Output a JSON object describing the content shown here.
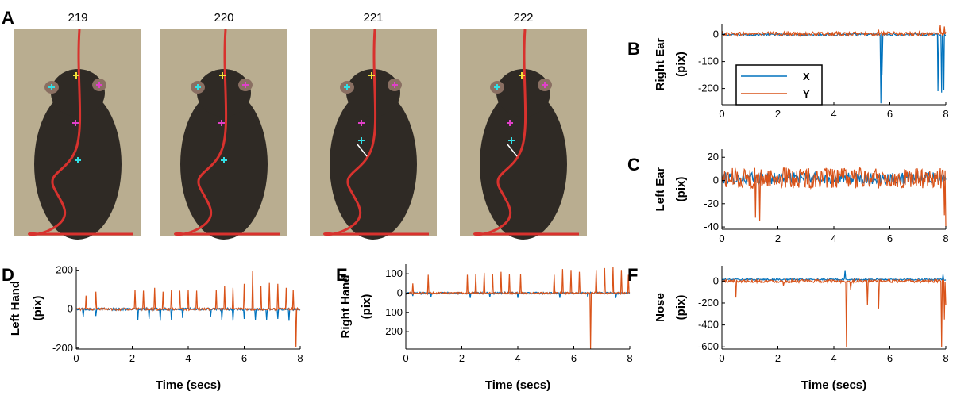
{
  "panel_a": {
    "letter": "A",
    "frames": [
      "219",
      "220",
      "221",
      "222"
    ]
  },
  "colors": {
    "x_series": "#0072BD",
    "y_series": "#D95319",
    "photo_bg": "#b9ad90",
    "mouse_body": "#2f2a25",
    "tail": "#d8322e",
    "marker_cyan": "#33e0e6",
    "marker_magenta": "#e040c8",
    "marker_yellow": "#f2e23a"
  },
  "legend": {
    "entries": [
      "X",
      "Y"
    ]
  },
  "chart_data": [
    {
      "id": "B",
      "type": "line",
      "letter": "B",
      "ylabel_lines": [
        "Right Ear",
        "(pix)"
      ],
      "xlabel": "",
      "xlim": [
        0,
        8
      ],
      "ylim": [
        -260,
        40
      ],
      "xticks": [
        0,
        2,
        4,
        6,
        8
      ],
      "yticks": [
        0,
        -100,
        -200
      ],
      "legend": "top-left inside",
      "series": [
        {
          "name": "X",
          "spikes": [
            [
              5.68,
              -255
            ],
            [
              5.72,
              -150
            ],
            [
              7.72,
              -210
            ],
            [
              7.85,
              -215
            ],
            [
              7.93,
              -205
            ]
          ],
          "base": 0,
          "noise": 4
        },
        {
          "name": "Y",
          "spikes": [
            [
              5.6,
              18
            ],
            [
              7.8,
              35
            ],
            [
              7.95,
              30
            ]
          ],
          "base": 3,
          "noise": 7
        }
      ]
    },
    {
      "id": "C",
      "type": "line",
      "letter": "C",
      "ylabel_lines": [
        "Left Ear",
        "(pix)"
      ],
      "xlabel": "",
      "xlim": [
        0,
        8
      ],
      "ylim": [
        -42,
        27
      ],
      "xticks": [
        0,
        2,
        4,
        6,
        8
      ],
      "yticks": [
        20,
        0,
        -20,
        -40
      ],
      "series": [
        {
          "name": "X",
          "spikes": [],
          "base": 2,
          "noise": 5
        },
        {
          "name": "Y",
          "spikes": [
            [
              1.2,
              -32
            ],
            [
              1.35,
              -35
            ],
            [
              7.95,
              -30
            ],
            [
              8.0,
              -40
            ]
          ],
          "base": 2,
          "noise": 9
        }
      ]
    },
    {
      "id": "D",
      "type": "line",
      "letter": "D",
      "ylabel_lines": [
        "Left Hand",
        "(pix)"
      ],
      "xlabel": "Time (secs)",
      "xlim": [
        0,
        8
      ],
      "ylim": [
        -205,
        215
      ],
      "xticks": [
        0,
        2,
        4,
        6,
        8
      ],
      "yticks": [
        200,
        0,
        -200
      ],
      "series": [
        {
          "name": "X",
          "spikes": [
            [
              0.25,
              -40
            ],
            [
              0.7,
              -35
            ],
            [
              2.2,
              -55
            ],
            [
              2.6,
              -50
            ],
            [
              3.0,
              -60
            ],
            [
              3.4,
              -55
            ],
            [
              3.8,
              -45
            ],
            [
              4.8,
              -40
            ],
            [
              5.2,
              -55
            ],
            [
              5.6,
              -60
            ],
            [
              6.0,
              -50
            ],
            [
              6.4,
              -55
            ],
            [
              6.8,
              -55
            ],
            [
              7.2,
              -50
            ],
            [
              7.6,
              -60
            ]
          ],
          "base": 0,
          "noise": 6
        },
        {
          "name": "Y",
          "spikes": [
            [
              0.35,
              70
            ],
            [
              0.7,
              90
            ],
            [
              2.1,
              100
            ],
            [
              2.4,
              95
            ],
            [
              2.8,
              110
            ],
            [
              3.1,
              90
            ],
            [
              3.4,
              100
            ],
            [
              3.7,
              95
            ],
            [
              4.0,
              100
            ],
            [
              4.3,
              95
            ],
            [
              5.0,
              100
            ],
            [
              5.3,
              120
            ],
            [
              5.6,
              110
            ],
            [
              6.0,
              130
            ],
            [
              6.3,
              195
            ],
            [
              6.6,
              120
            ],
            [
              6.9,
              135
            ],
            [
              7.2,
              130
            ],
            [
              7.5,
              110
            ],
            [
              7.75,
              100
            ],
            [
              7.85,
              -195
            ]
          ],
          "base": 0,
          "noise": 6
        }
      ]
    },
    {
      "id": "E",
      "type": "line",
      "letter": "E",
      "ylabel_lines": [
        "Right Hand",
        "(pix)"
      ],
      "xlabel": "Time (secs)",
      "xlim": [
        0,
        8
      ],
      "ylim": [
        -290,
        150
      ],
      "xticks": [
        0,
        2,
        4,
        6,
        8
      ],
      "yticks": [
        100,
        0,
        -100,
        -200
      ],
      "series": [
        {
          "name": "X",
          "spikes": [
            [
              0.25,
              -15
            ],
            [
              0.9,
              -20
            ],
            [
              2.3,
              -25
            ],
            [
              3.0,
              -20
            ],
            [
              4.0,
              -25
            ],
            [
              5.5,
              -25
            ],
            [
              6.5,
              -20
            ],
            [
              7.5,
              -25
            ]
          ],
          "base": 0,
          "noise": 5
        },
        {
          "name": "Y",
          "spikes": [
            [
              0.25,
              50
            ],
            [
              0.8,
              95
            ],
            [
              2.2,
              95
            ],
            [
              2.5,
              100
            ],
            [
              2.8,
              105
            ],
            [
              3.1,
              100
            ],
            [
              3.4,
              110
            ],
            [
              3.7,
              100
            ],
            [
              4.1,
              100
            ],
            [
              5.3,
              95
            ],
            [
              5.6,
              125
            ],
            [
              5.9,
              120
            ],
            [
              6.2,
              110
            ],
            [
              6.6,
              -290
            ],
            [
              6.8,
              120
            ],
            [
              7.1,
              130
            ],
            [
              7.4,
              135
            ],
            [
              7.7,
              120
            ],
            [
              7.95,
              95
            ]
          ],
          "base": 0,
          "noise": 5
        }
      ]
    },
    {
      "id": "F",
      "type": "line",
      "letter": "F",
      "ylabel_lines": [
        "Nose",
        "(pix)"
      ],
      "xlabel": "Time (secs)",
      "xlim": [
        0,
        8
      ],
      "ylim": [
        -620,
        140
      ],
      "xticks": [
        0,
        2,
        4,
        6,
        8
      ],
      "yticks": [
        0,
        -200,
        -400,
        -600
      ],
      "series": [
        {
          "name": "X",
          "spikes": [
            [
              4.4,
              100
            ],
            [
              7.9,
              60
            ]
          ],
          "base": 15,
          "noise": 7
        },
        {
          "name": "Y",
          "spikes": [
            [
              0.5,
              -150
            ],
            [
              2.2,
              -40
            ],
            [
              4.45,
              -600
            ],
            [
              4.6,
              -80
            ],
            [
              5.2,
              -220
            ],
            [
              5.6,
              -250
            ],
            [
              7.85,
              -600
            ],
            [
              7.95,
              -350
            ],
            [
              8.0,
              -220
            ]
          ],
          "base": 0,
          "noise": 14
        }
      ]
    }
  ]
}
